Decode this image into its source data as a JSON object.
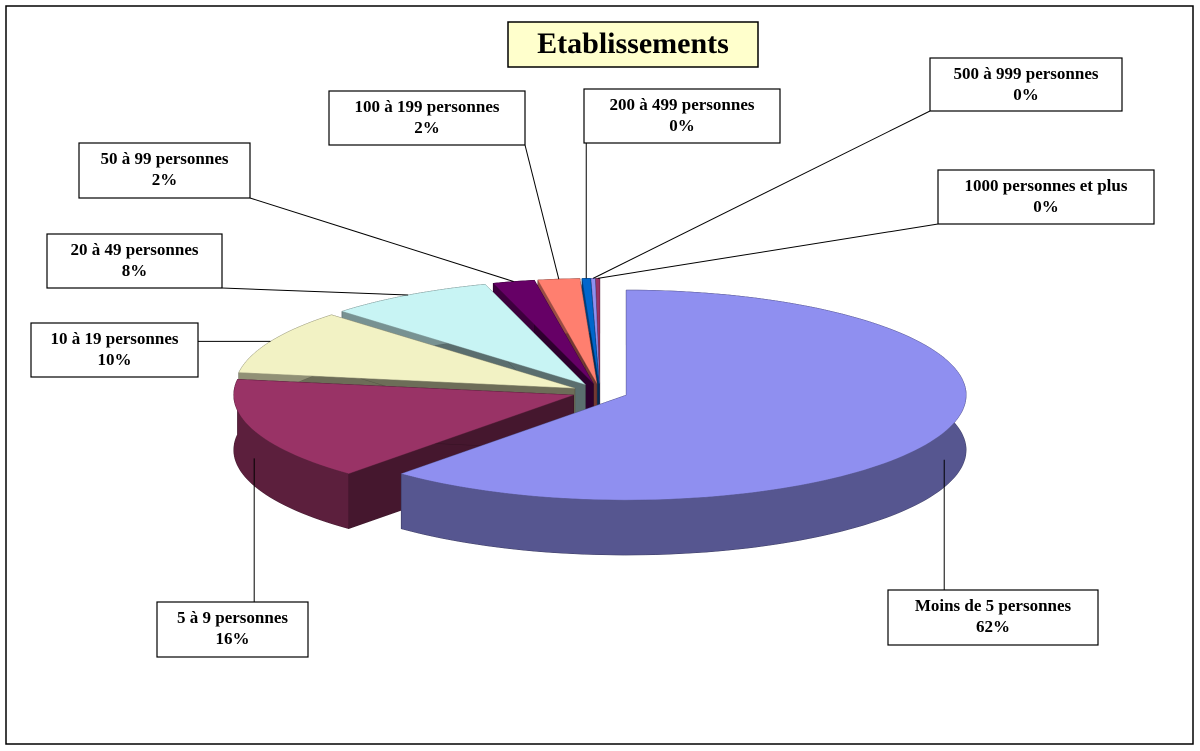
{
  "chart_data": {
    "type": "pie",
    "title": "Etablissements",
    "categories": [
      "Moins de 5 personnes",
      "5 à 9 personnes",
      "10 à 19 personnes",
      "20 à 49 personnes",
      "50 à 99 personnes",
      "100 à 199 personnes",
      "200 à 499 personnes",
      "500 à 999 personnes",
      "1000 personnes et plus"
    ],
    "values": [
      62,
      16,
      10,
      8,
      2,
      2,
      0.4,
      0.2,
      0.2
    ],
    "value_labels": [
      "62%",
      "16%",
      "10%",
      "8%",
      "2%",
      "2%",
      "0%",
      "0%",
      "0%"
    ],
    "colors": [
      "#8f8ff0",
      "#993366",
      "#f2f2c4",
      "#c8f4f4",
      "#660066",
      "#ff7f6f",
      "#0066cc",
      "#8f8ff0",
      "#993366"
    ]
  }
}
